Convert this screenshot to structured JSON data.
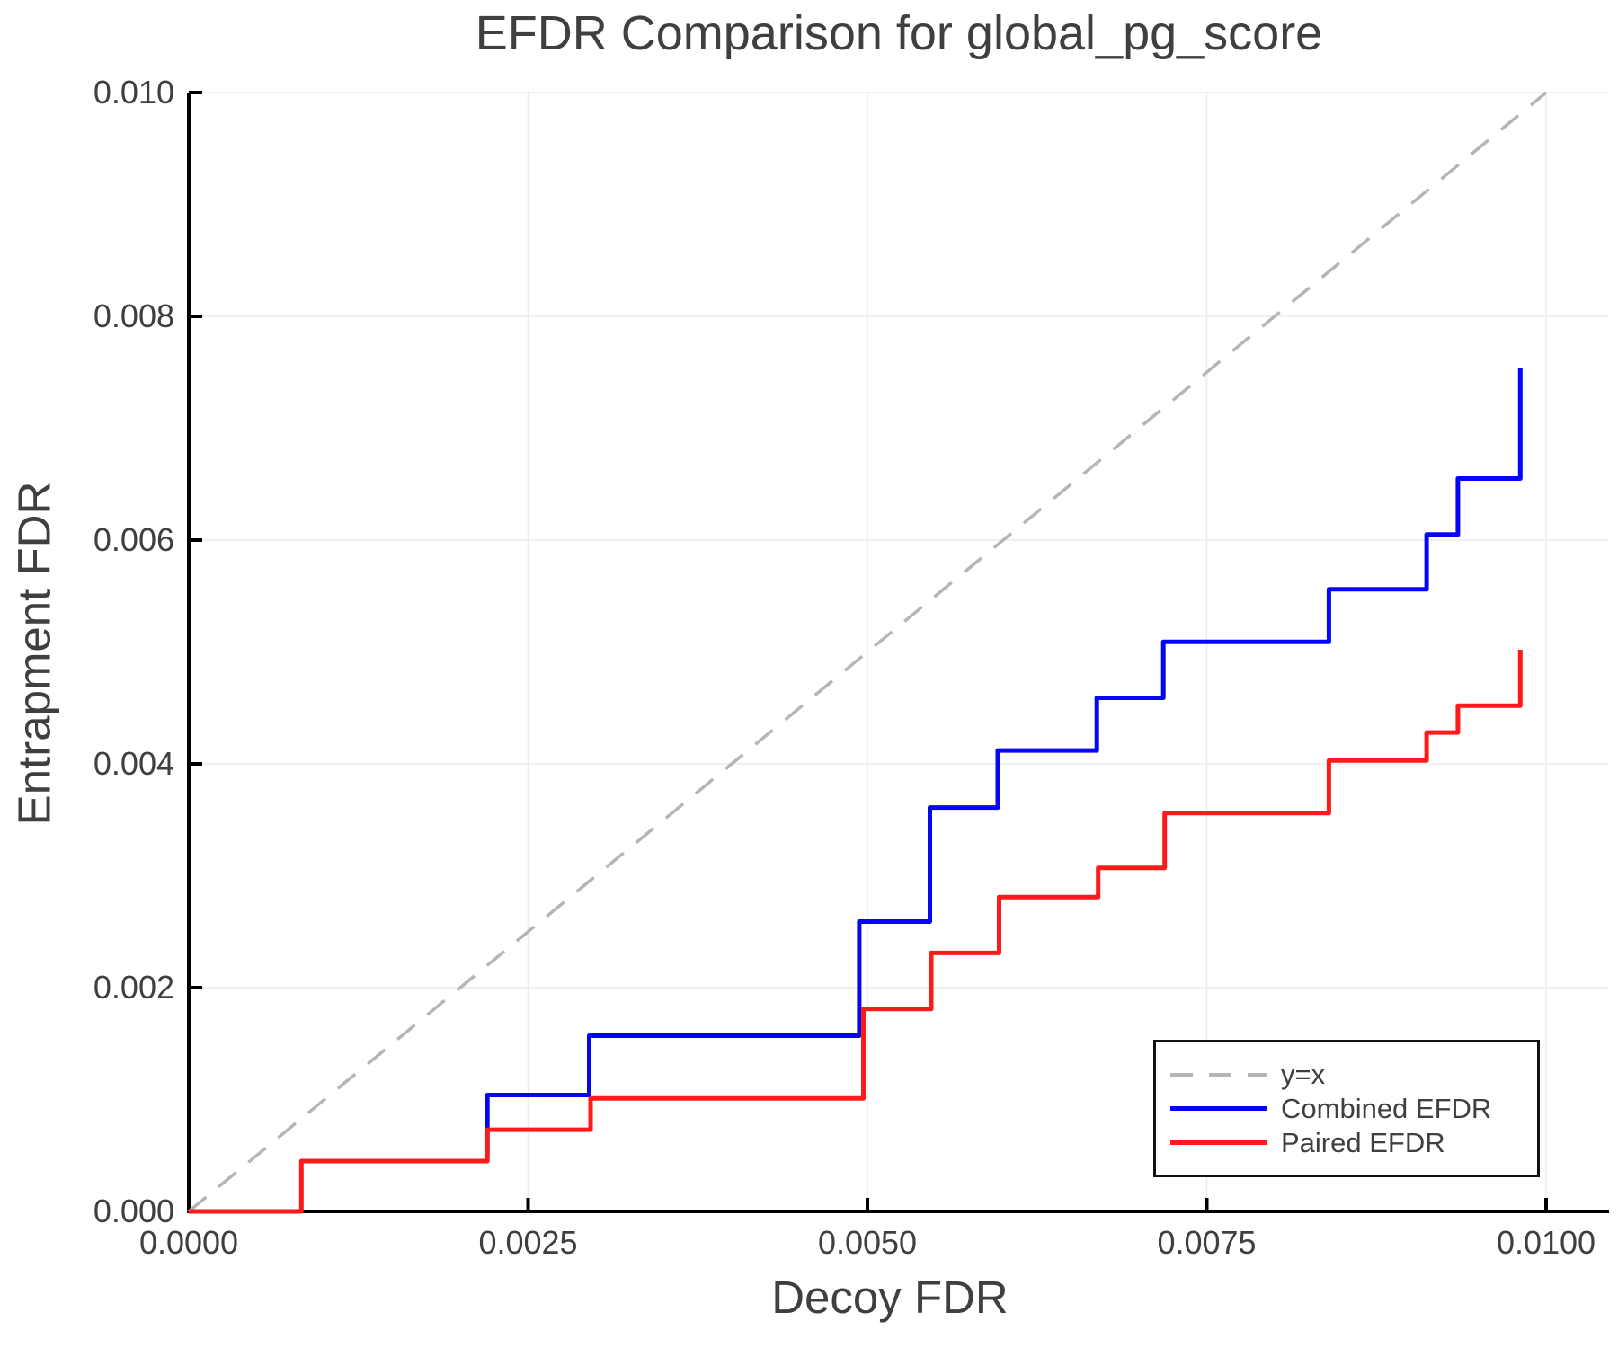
{
  "title": "EFDR Comparison for global_pg_score",
  "x_axis": {
    "label": "Decoy FDR",
    "tick_values": [
      0,
      0.0025,
      0.005,
      0.0075,
      0.01
    ],
    "tick_labels": [
      "0.0000",
      "0.0025",
      "0.0050",
      "0.0075",
      "0.0100"
    ]
  },
  "y_axis": {
    "label": "Entrapment FDR",
    "tick_values": [
      0,
      0.002,
      0.004,
      0.006,
      0.008,
      0.01
    ],
    "tick_labels": [
      "0.000",
      "0.002",
      "0.004",
      "0.006",
      "0.008",
      "0.010"
    ]
  },
  "legend": {
    "entries": [
      {
        "label": "y=x",
        "color": "#b5b5b5",
        "style": "dashed"
      },
      {
        "label": "Combined EFDR",
        "color": "#0606f7",
        "style": "solid"
      },
      {
        "label": "Paired EFDR",
        "color": "#fc1a1a",
        "style": "solid"
      }
    ]
  },
  "colors": {
    "grid": "#ebebeb",
    "spine": "#000000",
    "text": "#3f3f3f",
    "background": "#ffffff"
  },
  "chart_data": {
    "type": "line",
    "title": "EFDR Comparison for global_pg_score",
    "xlabel": "Decoy FDR",
    "ylabel": "Entrapment FDR",
    "xlim": [
      0,
      0.01
    ],
    "ylim": [
      0,
      0.01
    ],
    "grid": true,
    "legend_position": "lower right",
    "series": [
      {
        "name": "y=x",
        "color": "#b5b5b5",
        "style": "dashed",
        "width": 3.5,
        "points": [
          [
            0,
            0
          ],
          [
            0.01,
            0.01
          ]
        ]
      },
      {
        "name": "Combined EFDR",
        "color": "#0606f7",
        "style": "solid",
        "width": 5,
        "points": [
          [
            0.0022,
            0.0005
          ],
          [
            0.0022,
            0.00104
          ],
          [
            0.00295,
            0.00104
          ],
          [
            0.00295,
            0.00157
          ],
          [
            0.00494,
            0.00157
          ],
          [
            0.00494,
            0.00259
          ],
          [
            0.00546,
            0.00259
          ],
          [
            0.00546,
            0.00361
          ],
          [
            0.00596,
            0.00361
          ],
          [
            0.00596,
            0.00412
          ],
          [
            0.00669,
            0.00412
          ],
          [
            0.00669,
            0.00459
          ],
          [
            0.00718,
            0.00459
          ],
          [
            0.00718,
            0.00509
          ],
          [
            0.0084,
            0.00509
          ],
          [
            0.0084,
            0.00556
          ],
          [
            0.00912,
            0.00556
          ],
          [
            0.00912,
            0.00605
          ],
          [
            0.00935,
            0.00605
          ],
          [
            0.00935,
            0.00655
          ],
          [
            0.00981,
            0.00655
          ],
          [
            0.00981,
            0.00754
          ]
        ]
      },
      {
        "name": "Paired EFDR",
        "color": "#fc1a1a",
        "style": "solid",
        "width": 5,
        "points": [
          [
            0.0,
            0.0
          ],
          [
            0.00083,
            0.0
          ],
          [
            0.00083,
            0.00045
          ],
          [
            0.0022,
            0.00045
          ],
          [
            0.0022,
            0.00073
          ],
          [
            0.00296,
            0.00073
          ],
          [
            0.00296,
            0.00101
          ],
          [
            0.00497,
            0.00101
          ],
          [
            0.00497,
            0.00181
          ],
          [
            0.00547,
            0.00181
          ],
          [
            0.00547,
            0.00231
          ],
          [
            0.00597,
            0.00231
          ],
          [
            0.00597,
            0.00281
          ],
          [
            0.0067,
            0.00281
          ],
          [
            0.0067,
            0.00307
          ],
          [
            0.00719,
            0.00307
          ],
          [
            0.00719,
            0.00356
          ],
          [
            0.0084,
            0.00356
          ],
          [
            0.0084,
            0.00403
          ],
          [
            0.00912,
            0.00403
          ],
          [
            0.00912,
            0.00428
          ],
          [
            0.00935,
            0.00428
          ],
          [
            0.00935,
            0.00452
          ],
          [
            0.00981,
            0.00452
          ],
          [
            0.00981,
            0.00502
          ]
        ]
      }
    ]
  }
}
